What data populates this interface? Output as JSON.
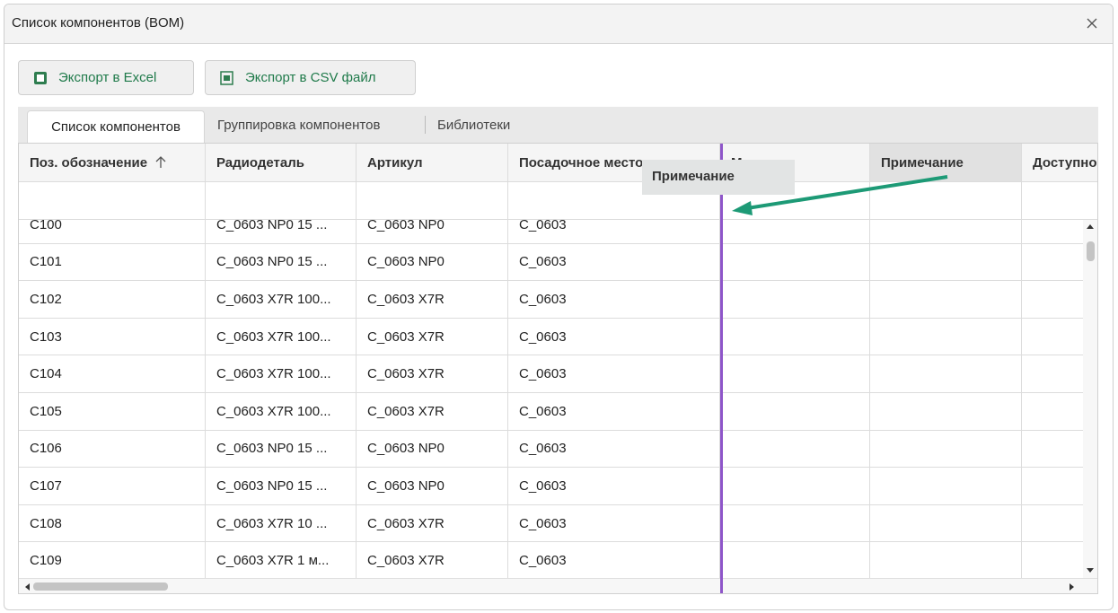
{
  "window": {
    "title": "Список компонентов (BOM)"
  },
  "toolbar": {
    "buttons": [
      "Экспорт в Excel",
      "Экспорт в CSV файл"
    ]
  },
  "tabs": [
    "Список компонентов",
    "Группировка компонентов",
    "Библиотеки"
  ],
  "table": {
    "columns": [
      "Поз. обозначение",
      "Радиодеталь",
      "Артикул",
      "Посадочное место",
      "Место",
      "Примечание",
      "Доступно"
    ],
    "rows": [
      [
        "C100",
        "C_0603 NP0 15 ...",
        "C_0603 NP0",
        "C_0603"
      ],
      [
        "C101",
        "C_0603 NP0 15 ...",
        "C_0603 NP0",
        "C_0603"
      ],
      [
        "C102",
        "C_0603 X7R 100...",
        "C_0603 X7R",
        "C_0603"
      ],
      [
        "C103",
        "C_0603 X7R 100...",
        "C_0603 X7R",
        "C_0603"
      ],
      [
        "C104",
        "C_0603 X7R 100...",
        "C_0603 X7R",
        "C_0603"
      ],
      [
        "C105",
        "C_0603 X7R 100...",
        "C_0603 X7R",
        "C_0603"
      ],
      [
        "C106",
        "C_0603 NP0 15 ...",
        "C_0603 NP0",
        "C_0603"
      ],
      [
        "C107",
        "C_0603 NP0 15 ...",
        "C_0603 NP0",
        "C_0603"
      ],
      [
        "C108",
        "C_0603 X7R 10 ...",
        "C_0603 X7R",
        "C_0603"
      ],
      [
        "C109",
        "C_0603 X7R 1 м...",
        "C_0603 X7R",
        "C_0603"
      ]
    ]
  },
  "drag_ghost": "Примечание"
}
